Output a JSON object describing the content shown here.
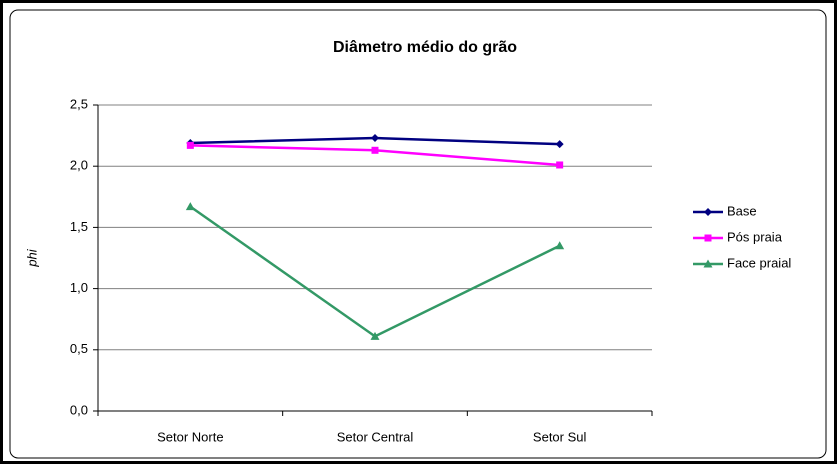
{
  "chart_data": {
    "type": "line",
    "title": "Diâmetro médio do grão",
    "y_label": "phi",
    "categories": [
      "Setor Norte",
      "Setor Central",
      "Setor Sul"
    ],
    "series": [
      {
        "name": "Base",
        "color": "#000080",
        "marker": "diamond",
        "values": [
          2.19,
          2.23,
          2.18
        ]
      },
      {
        "name": "Pós praia",
        "color": "#ff00ff",
        "marker": "square",
        "values": [
          2.17,
          2.13,
          2.01
        ]
      },
      {
        "name": "Face praial",
        "color": "#339966",
        "marker": "triangle",
        "values": [
          1.67,
          0.61,
          1.35
        ]
      }
    ],
    "ylim": [
      0,
      2.5
    ],
    "yticks": [
      {
        "value": 0,
        "label": "0,0"
      },
      {
        "value": 0.5,
        "label": "0,5"
      },
      {
        "value": 1,
        "label": "1,0"
      },
      {
        "value": 1.5,
        "label": "1,5"
      },
      {
        "value": 2,
        "label": "2,0"
      },
      {
        "value": 2.5,
        "label": "2,5"
      }
    ],
    "grid": true,
    "legend": "right"
  }
}
